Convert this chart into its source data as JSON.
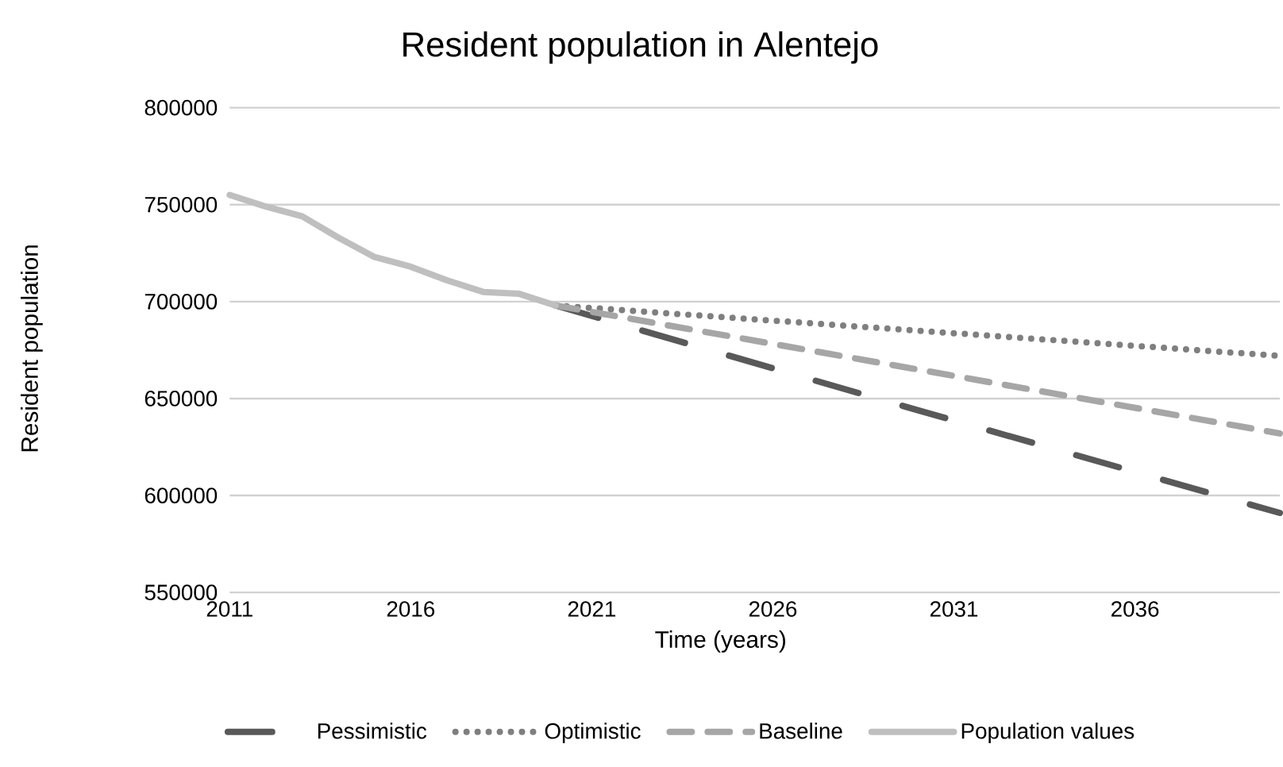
{
  "chart_data": {
    "type": "line",
    "title": "Resident population in Alentejo",
    "xlabel": "Time (years)",
    "ylabel": "Resident population",
    "xlim": [
      2011,
      2040
    ],
    "xticks": [
      2011,
      2016,
      2021,
      2026,
      2031,
      2036
    ],
    "ylim": [
      550000,
      800000
    ],
    "yticks": [
      550000,
      600000,
      650000,
      700000,
      750000,
      800000
    ],
    "grid": "y",
    "legend": "bottom",
    "series": [
      {
        "name": "Pessimistic",
        "color": "#595959",
        "line_style": "dashdot",
        "x": [
          2020,
          2030,
          2040
        ],
        "values": [
          698000,
          644000,
          591000
        ]
      },
      {
        "name": "Optimistic",
        "color": "#7f7f7f",
        "line_style": "dotted",
        "x": [
          2020,
          2030,
          2040
        ],
        "values": [
          698000,
          685000,
          672000
        ]
      },
      {
        "name": "Baseline",
        "color": "#a6a6a6",
        "line_style": "dashed",
        "x": [
          2020,
          2030,
          2040
        ],
        "values": [
          698000,
          665000,
          632000
        ]
      },
      {
        "name": "Population values",
        "color": "#bfbfbf",
        "line_style": "solid",
        "x": [
          2011,
          2012,
          2013,
          2014,
          2015,
          2016,
          2017,
          2018,
          2019,
          2020
        ],
        "values": [
          755000,
          749000,
          744000,
          733000,
          723000,
          718000,
          711000,
          705000,
          704000,
          698000
        ]
      }
    ]
  }
}
